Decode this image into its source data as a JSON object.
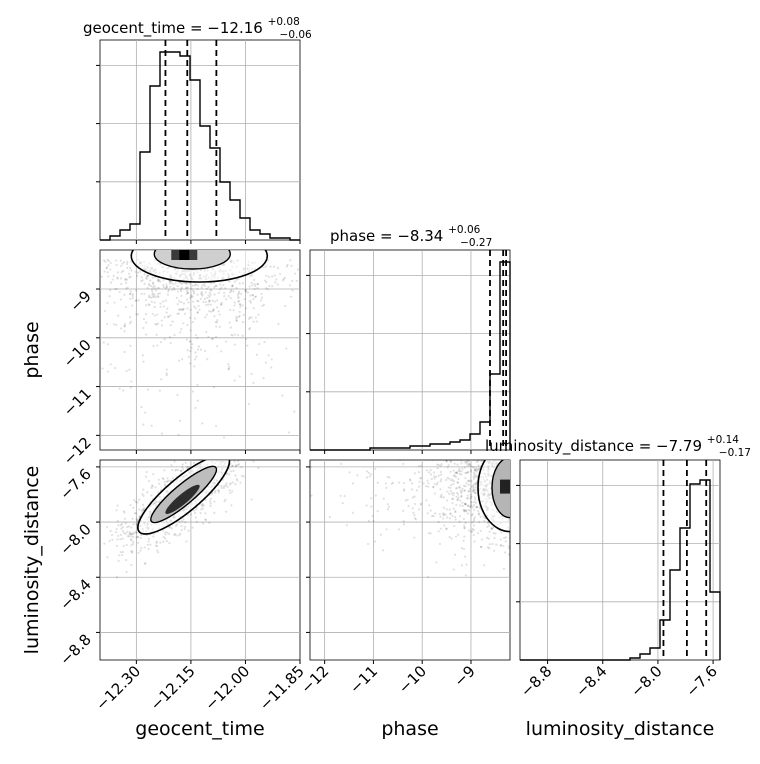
{
  "chart_data": {
    "type": "corner",
    "parameters": [
      {
        "name": "geocent_time",
        "axis_label": "geocent_time",
        "title_main": "geocent_time = −12.16",
        "title_sup": "+0.08",
        "title_sub": "−0.06",
        "range": [
          -12.4,
          -11.85
        ],
        "ticks": [
          -12.3,
          -12.15,
          -12.0,
          -11.85
        ],
        "tick_labels": [
          "−12.30",
          "−12.15",
          "−12.00",
          "−11.85"
        ],
        "quantiles": [
          -12.22,
          -12.16,
          -12.08
        ],
        "hist": [
          0,
          0.02,
          0.05,
          0.08,
          0.44,
          0.77,
          0.94,
          0.94,
          0.92,
          0.8,
          0.57,
          0.46,
          0.29,
          0.2,
          0.11,
          0.05,
          0.03,
          0.01,
          0.01,
          0.0
        ]
      },
      {
        "name": "phase",
        "axis_label": "phase",
        "title_main": "phase = −8.34",
        "title_sup": "+0.06",
        "title_sub": "−0.27",
        "range": [
          -12.3,
          -8.2
        ],
        "ticks": [
          -12,
          -11,
          -10,
          -9
        ],
        "tick_labels": [
          "−12",
          "−11",
          "−10",
          "−9"
        ],
        "ticks_y": [
          -9,
          -10,
          -11,
          -12
        ],
        "tick_labels_y": [
          "−9",
          "−10",
          "−11",
          "−12"
        ],
        "quantiles": [
          -8.61,
          -8.34,
          -8.28
        ],
        "hist": [
          0,
          0,
          0,
          0,
          0,
          0,
          0.01,
          0.01,
          0.01,
          0.01,
          0.02,
          0.02,
          0.03,
          0.03,
          0.04,
          0.05,
          0.08,
          0.14,
          0.38,
          0.94
        ]
      },
      {
        "name": "luminosity_distance",
        "axis_label": "luminosity_distance",
        "title_main": "luminosity_distance = −7.79",
        "title_sup": "+0.14",
        "title_sub": "−0.17",
        "range": [
          -9.0,
          -7.55
        ],
        "ticks": [
          -8.8,
          -8.4,
          -8.0,
          -7.6
        ],
        "tick_labels": [
          "−8.8",
          "−8.4",
          "−8.0",
          "−7.6"
        ],
        "ticks_y": [
          -7.6,
          -8.0,
          -8.4,
          -8.8
        ],
        "tick_labels_y": [
          "−7.6",
          "−8.0",
          "−8.4",
          "−8.8"
        ],
        "quantiles": [
          -7.96,
          -7.79,
          -7.65
        ],
        "hist": [
          0,
          0,
          0,
          0,
          0,
          0,
          0,
          0,
          0,
          0,
          0,
          0.01,
          0.03,
          0.06,
          0.2,
          0.45,
          0.66,
          0.88,
          0.9,
          0.34
        ]
      }
    ],
    "pairs": [
      {
        "x": "geocent_time",
        "y": "phase",
        "center": [
          -12.16,
          -8.4
        ],
        "spread": [
          0.08,
          0.25
        ],
        "scatter_spread": [
          0.12,
          0.9
        ]
      },
      {
        "x": "geocent_time",
        "y": "luminosity_distance",
        "center": [
          -12.17,
          -7.8
        ],
        "spread": [
          0.06,
          0.13
        ],
        "correlation": 0.78
      },
      {
        "x": "phase",
        "y": "luminosity_distance",
        "center": [
          -8.3,
          -7.75
        ],
        "spread": [
          0.45,
          0.15
        ]
      }
    ],
    "grid": true
  }
}
